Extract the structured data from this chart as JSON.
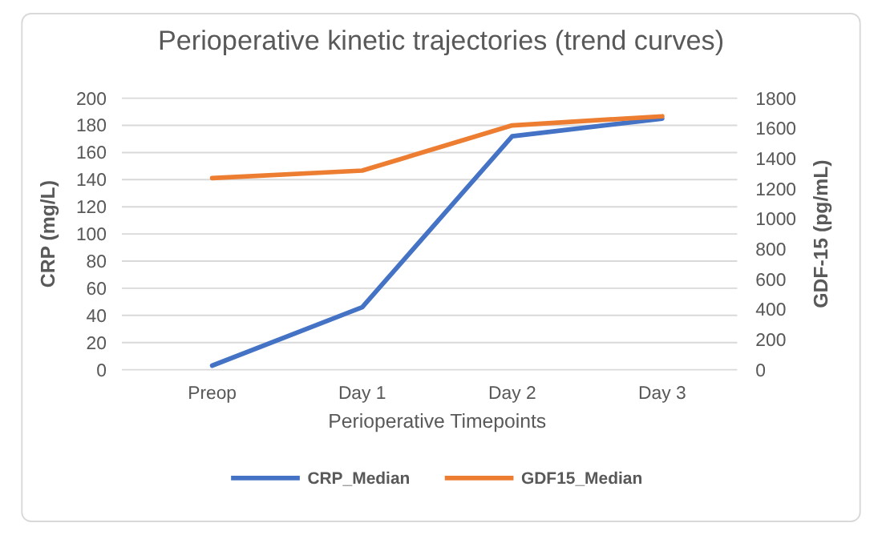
{
  "chart_data": {
    "type": "line",
    "title": "Perioperative kinetic trajectories (trend curves)",
    "xlabel": "Perioperative Timepoints",
    "ylabel": "CRP (mg/L)",
    "y2label": "GDF-15 (pg/mL)",
    "categories": [
      "Preop",
      "Day 1",
      "Day 2",
      "Day 3"
    ],
    "series": [
      {
        "name": "CRP_Median",
        "color": "#4472c4",
        "values": [
          3,
          46,
          172,
          185
        ]
      },
      {
        "name": "GDF15_Median",
        "color": "#ed7d31",
        "values": [
          1270,
          1320,
          1620,
          1680
        ],
        "axis": "y2"
      }
    ],
    "ylim": [
      0,
      200
    ],
    "yticks": [
      0,
      20,
      40,
      60,
      80,
      100,
      120,
      140,
      160,
      180,
      200
    ],
    "y2lim": [
      0,
      1800
    ],
    "y2ticks": [
      0,
      200,
      400,
      600,
      800,
      1000,
      1200,
      1400,
      1600,
      1800
    ],
    "grid": "y",
    "legend": "bottom",
    "marker": "none",
    "line_style": "solid"
  }
}
